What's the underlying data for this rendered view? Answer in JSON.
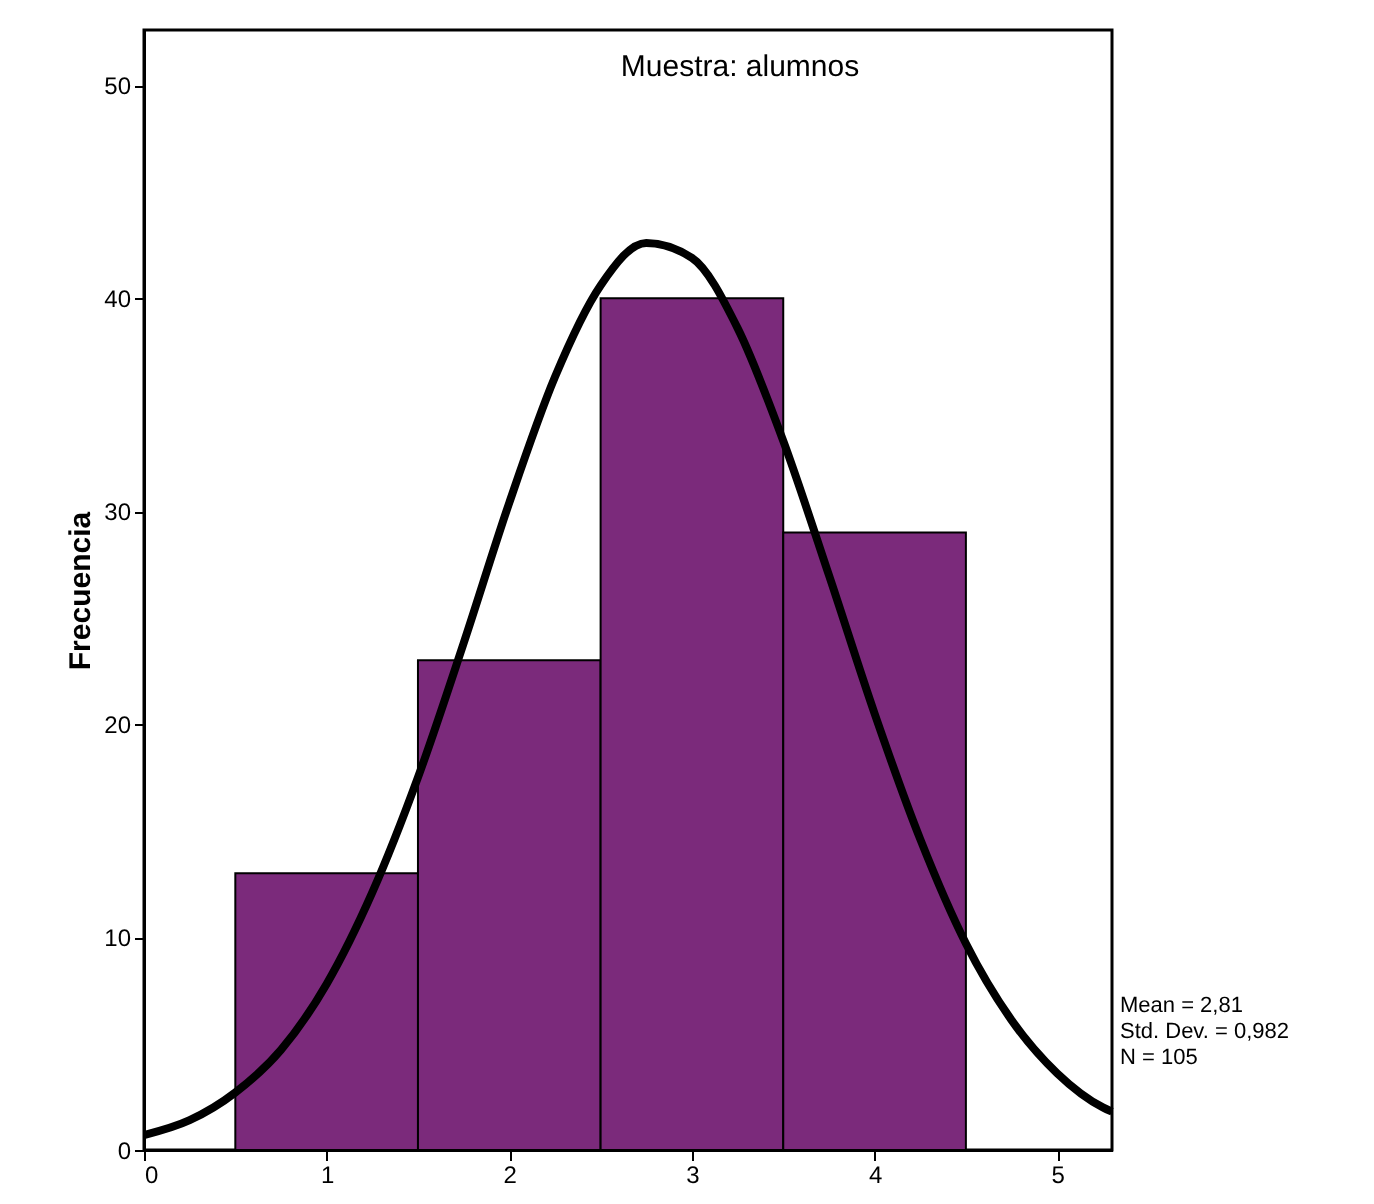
{
  "chart_data": {
    "type": "histogram",
    "title": "Muestra: alumnos",
    "ylabel": "Frecuencia",
    "bins": [
      0.5,
      1.5,
      2.5,
      3.5,
      4.5
    ],
    "values": [
      13,
      23,
      40,
      29
    ],
    "color": "#7b2a7b",
    "series": [
      {
        "type": "line",
        "color": "#000000",
        "x": [
          0,
          0.25,
          0.5,
          0.75,
          1.0,
          1.25,
          1.5,
          1.75,
          2.0,
          2.25,
          2.5,
          2.75,
          3.0,
          3.25,
          3.5,
          3.75,
          4.0,
          4.25,
          4.5,
          4.75,
          5.0,
          5.25,
          5.3
        ],
        "values": [
          0.7,
          1.4,
          2.7,
          4.7,
          7.8,
          12.1,
          17.5,
          23.8,
          30.4,
          36.3,
          40.6,
          42.6,
          41.9,
          38.6,
          33.3,
          27.0,
          20.5,
          14.6,
          9.7,
          6.1,
          3.6,
          2.0,
          1.8
        ]
      }
    ],
    "xlim": [
      0,
      5.3
    ],
    "ylim": [
      0,
      52.6
    ],
    "xticks": [
      0,
      1,
      2,
      3,
      4,
      5
    ],
    "yticks": [
      0,
      10,
      20,
      30,
      40,
      50
    ],
    "grid": false,
    "annotations": [
      "Mean = 2,81",
      "Std. Dev. = 0,982",
      "N = 105"
    ]
  }
}
